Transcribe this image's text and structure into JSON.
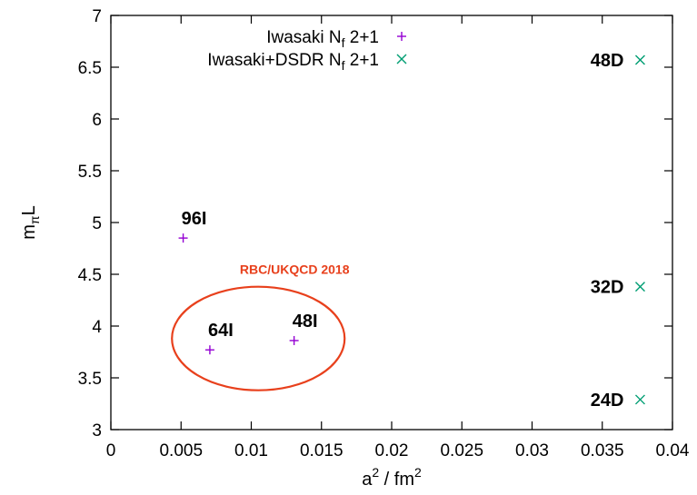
{
  "chart_data": {
    "type": "scatter",
    "xlabel": "a",
    "xlabel_sup1": "2",
    "xlabel_mid": " / fm",
    "xlabel_sup2": "2",
    "ylabel": "m",
    "ylabel_sub": "π",
    "ylabel_suffix": "L",
    "xlim": [
      0,
      0.04
    ],
    "ylim": [
      3,
      7
    ],
    "x_ticks": [
      0,
      0.005,
      0.01,
      0.015,
      0.02,
      0.025,
      0.03,
      0.035,
      0.04
    ],
    "x_tick_labels": [
      "0",
      "0.005",
      "0.01",
      "0.015",
      "0.02",
      "0.025",
      "0.03",
      "0.035",
      "0.04"
    ],
    "y_ticks": [
      3,
      3.5,
      4,
      4.5,
      5,
      5.5,
      6,
      6.5,
      7
    ],
    "y_tick_labels": [
      "3",
      "3.5",
      "4",
      "4.5",
      "5",
      "5.5",
      "6",
      "6.5",
      "7"
    ],
    "grid": false,
    "legend_position": "top-right",
    "series": [
      {
        "name": "Iwasaki N",
        "name_sub": "f",
        "name_suffix": " 2+1",
        "marker": "plus",
        "color": "#9400d3",
        "points": [
          {
            "x": 0.00515,
            "y": 4.85,
            "label": "96I"
          },
          {
            "x": 0.00705,
            "y": 3.77,
            "label": "64I"
          },
          {
            "x": 0.01305,
            "y": 3.86,
            "label": "48I"
          }
        ]
      },
      {
        "name": "Iwasaki+DSDR N",
        "name_sub": "f",
        "name_suffix": " 2+1",
        "marker": "cross",
        "color": "#009e73",
        "points": [
          {
            "x": 0.0377,
            "y": 6.57,
            "label": "48D"
          },
          {
            "x": 0.0377,
            "y": 4.38,
            "label": "32D"
          },
          {
            "x": 0.0377,
            "y": 3.29,
            "label": "24D"
          }
        ]
      }
    ],
    "annotations": [
      {
        "text": "RBC/UKQCD 2018",
        "color": "#e8401c",
        "shape": "ellipse",
        "center_x": 0.0105,
        "center_y": 3.88,
        "radius_x": 0.00615,
        "radius_y": 0.5
      }
    ]
  }
}
